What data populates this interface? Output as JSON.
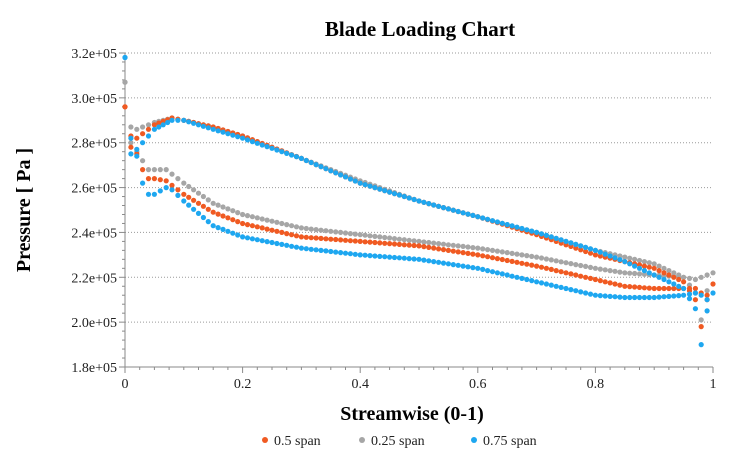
{
  "chart_data": {
    "type": "scatter",
    "title": "Blade Loading Chart",
    "xlabel": "Streamwise (0-1)",
    "ylabel": "Pressure [ Pa ]",
    "xlim": [
      0,
      1
    ],
    "ylim": [
      180000,
      320000
    ],
    "x_ticks": [
      0,
      0.2,
      0.4,
      0.6,
      0.8,
      1
    ],
    "x_tick_labels": [
      "0",
      "0.2",
      "0.4",
      "0.6",
      "0.8",
      "1"
    ],
    "y_ticks": [
      180000,
      200000,
      220000,
      240000,
      260000,
      280000,
      300000,
      320000
    ],
    "y_tick_labels": [
      "1.8e+05",
      "2.0e+05",
      "2.2e+05",
      "2.4e+05",
      "2.6e+05",
      "2.8e+05",
      "3.0e+05",
      "3.2e+05"
    ],
    "grid": "horizontal-dotted",
    "legend_position": "bottom",
    "series": [
      {
        "name": "0.5 span",
        "color": "#f05a22",
        "pressure_side": {
          "x": [
            0,
            0.01,
            0.02,
            0.03,
            0.05,
            0.08,
            0.1,
            0.15,
            0.2,
            0.3,
            0.4,
            0.5,
            0.6,
            0.7,
            0.8,
            0.85,
            0.9,
            0.95,
            0.97,
            0.98,
            0.99,
            1.0
          ],
          "y": [
            296000,
            283000,
            282000,
            284000,
            288000,
            291000,
            290000,
            287000,
            283000,
            273000,
            262000,
            254000,
            247000,
            239000,
            230000,
            227000,
            224000,
            218000,
            210000,
            198000,
            210000,
            217000
          ]
        },
        "suction_side": {
          "x": [
            0,
            0.01,
            0.02,
            0.03,
            0.04,
            0.05,
            0.07,
            0.08,
            0.1,
            0.15,
            0.2,
            0.3,
            0.4,
            0.5,
            0.6,
            0.7,
            0.8,
            0.85,
            0.9,
            0.95,
            0.97,
            0.98,
            0.99
          ],
          "y": [
            296000,
            278000,
            275000,
            268000,
            264000,
            264000,
            263000,
            261000,
            257000,
            249000,
            244000,
            238000,
            236000,
            234000,
            230000,
            225000,
            219000,
            216000,
            215000,
            215000,
            215000,
            213000,
            212000
          ]
        }
      },
      {
        "name": "0.25 span",
        "color": "#a6a6a6",
        "pressure_side": {
          "x": [
            0,
            0.01,
            0.02,
            0.03,
            0.05,
            0.08,
            0.1,
            0.15,
            0.2,
            0.3,
            0.4,
            0.5,
            0.6,
            0.7,
            0.8,
            0.85,
            0.9,
            0.95,
            0.97,
            0.98,
            0.99,
            1.0
          ],
          "y": [
            307000,
            287000,
            286000,
            287000,
            289000,
            291000,
            290000,
            287000,
            283000,
            273000,
            263000,
            254000,
            247000,
            240000,
            232000,
            229000,
            226000,
            220000,
            213000,
            201000,
            214000,
            222000
          ]
        },
        "suction_side": {
          "x": [
            0,
            0.01,
            0.02,
            0.03,
            0.04,
            0.05,
            0.07,
            0.08,
            0.1,
            0.15,
            0.2,
            0.3,
            0.4,
            0.5,
            0.6,
            0.7,
            0.8,
            0.85,
            0.9,
            0.95,
            0.97,
            0.98,
            0.99
          ],
          "y": [
            307000,
            280000,
            276000,
            272000,
            268000,
            268000,
            268000,
            266000,
            262000,
            253000,
            248000,
            242000,
            239000,
            236000,
            233000,
            229000,
            224000,
            222000,
            221000,
            220000,
            219000,
            220000,
            221000
          ]
        }
      },
      {
        "name": "0.75 span",
        "color": "#1ea7f0",
        "pressure_side": {
          "x": [
            0,
            0.01,
            0.02,
            0.03,
            0.05,
            0.08,
            0.1,
            0.15,
            0.2,
            0.3,
            0.4,
            0.5,
            0.6,
            0.7,
            0.8,
            0.85,
            0.9,
            0.95,
            0.97,
            0.98,
            0.99,
            1.0
          ],
          "y": [
            318000,
            282000,
            277000,
            280000,
            286000,
            290000,
            290000,
            286000,
            282000,
            273000,
            262000,
            254000,
            247000,
            240000,
            232000,
            227000,
            221000,
            215000,
            206000,
            190000,
            205000,
            213000
          ]
        },
        "suction_side": {
          "x": [
            0,
            0.01,
            0.02,
            0.03,
            0.04,
            0.05,
            0.07,
            0.08,
            0.1,
            0.15,
            0.2,
            0.3,
            0.4,
            0.5,
            0.6,
            0.7,
            0.8,
            0.85,
            0.9,
            0.95,
            0.97,
            0.98,
            0.99
          ],
          "y": [
            318000,
            275000,
            274000,
            262000,
            257000,
            257000,
            260000,
            259000,
            254000,
            243000,
            238000,
            233000,
            230000,
            228000,
            224000,
            218000,
            212000,
            211000,
            211000,
            212000,
            213000,
            212000,
            210000
          ]
        }
      }
    ]
  }
}
